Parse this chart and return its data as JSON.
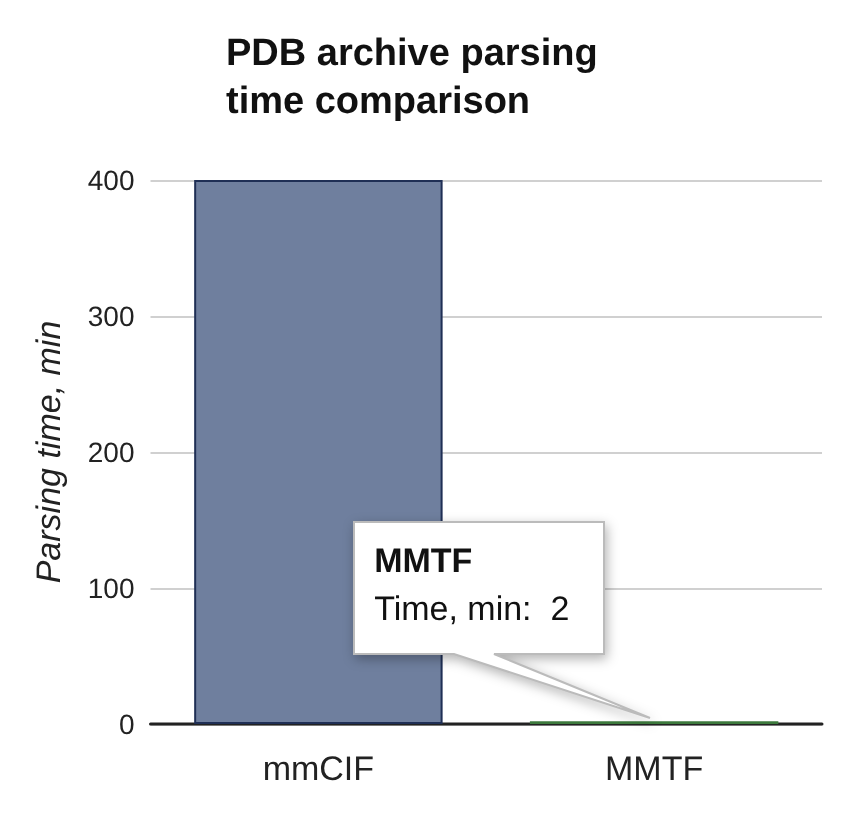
{
  "chart_data": {
    "type": "bar",
    "title": "PDB archive parsing\ntime comparison",
    "ylabel": "Parsing time, min",
    "categories": [
      "mmCIF",
      "MMTF"
    ],
    "values": [
      400,
      2
    ],
    "colors": [
      "#6f7f9e",
      "#3d7a3d"
    ],
    "ylim": [
      0,
      400
    ],
    "yticks": [
      0,
      100,
      200,
      300,
      400
    ],
    "grid": "y",
    "annotations": [
      "MMTF\nTime, min:  2"
    ]
  }
}
